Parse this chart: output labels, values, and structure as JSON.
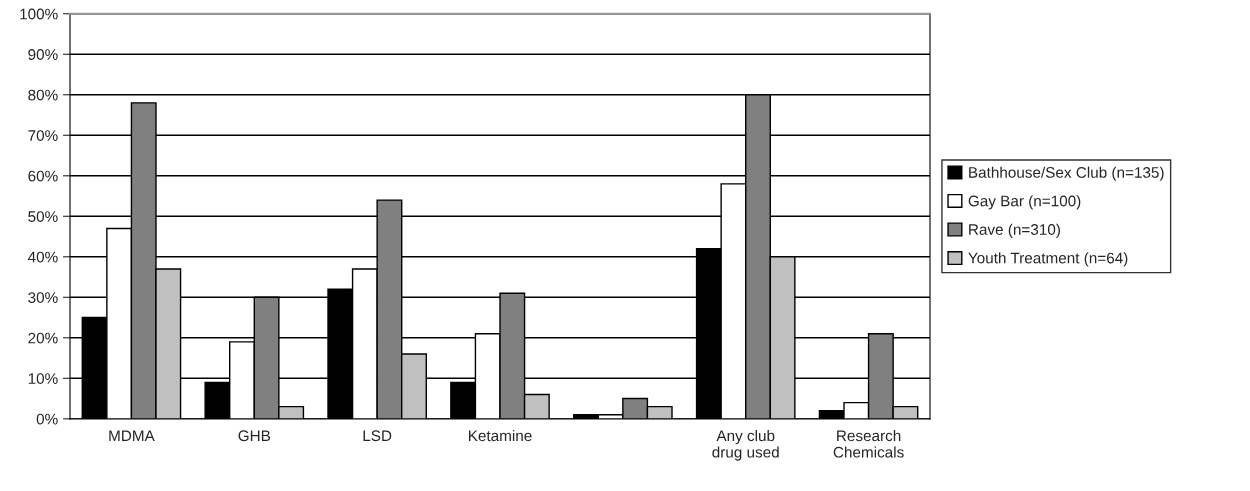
{
  "chart_data": {
    "type": "bar",
    "categories": [
      "MDMA",
      "GHB",
      "LSD",
      "Ketamine",
      null,
      "Any club\ndrug used",
      "Research\nChemicals"
    ],
    "series": [
      {
        "name": "Bathhouse/Sex Club (n=135)",
        "color": "#000000",
        "values": [
          25,
          9,
          32,
          9,
          1,
          42,
          2
        ]
      },
      {
        "name": "Gay Bar (n=100)",
        "color": "#ffffff",
        "values": [
          47,
          19,
          37,
          21,
          1,
          58,
          4
        ]
      },
      {
        "name": "Rave (n=310)",
        "color": "#808080",
        "values": [
          78,
          30,
          54,
          31,
          5,
          80,
          21
        ]
      },
      {
        "name": "Youth Treatment (n=64)",
        "color": "#c0c0c0",
        "values": [
          37,
          3,
          16,
          6,
          3,
          40,
          3
        ]
      }
    ],
    "ylim": [
      0,
      100
    ],
    "yticks": [
      {
        "value": 0,
        "label": "0%"
      },
      {
        "value": 10,
        "label": "10%"
      },
      {
        "value": 20,
        "label": "20%"
      },
      {
        "value": 30,
        "label": "30%"
      },
      {
        "value": 40,
        "label": "40%"
      },
      {
        "value": 50,
        "label": "50%"
      },
      {
        "value": 60,
        "label": "60%"
      },
      {
        "value": 70,
        "label": "70%"
      },
      {
        "value": 80,
        "label": "80%"
      },
      {
        "value": 90,
        "label": "90%"
      },
      {
        "value": 100,
        "label": "100%"
      }
    ],
    "grid": "y",
    "legend": "right"
  }
}
